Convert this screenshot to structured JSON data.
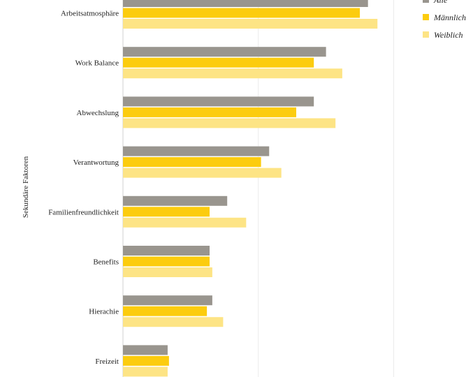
{
  "chart_data": {
    "type": "bar",
    "orientation": "horizontal",
    "categories": [
      "Arbeitsatmosphäre",
      "Work Balance",
      "Abwechslung",
      "Verantwortung",
      "Familienfreundlichkeit",
      "Benefits",
      "Hierachie",
      "Freizeit"
    ],
    "series": [
      {
        "name": "Alle",
        "color": "#99958e",
        "values": [
          90.5,
          75.0,
          70.5,
          54.0,
          38.5,
          32.0,
          33.0,
          16.5
        ]
      },
      {
        "name": "Männlich",
        "color": "#fccc0e",
        "values": [
          87.5,
          70.5,
          64.0,
          51.0,
          32.0,
          32.0,
          31.0,
          17.0
        ]
      },
      {
        "name": "Weiblich",
        "color": "#fde485",
        "values": [
          94.0,
          81.0,
          78.5,
          58.5,
          45.5,
          33.0,
          37.0,
          16.5
        ]
      }
    ],
    "ylabel": "Sekundäre Faktoren",
    "xlim": [
      0,
      110
    ],
    "gridlines_x": [
      50,
      100
    ],
    "legend_position": "top-right"
  }
}
